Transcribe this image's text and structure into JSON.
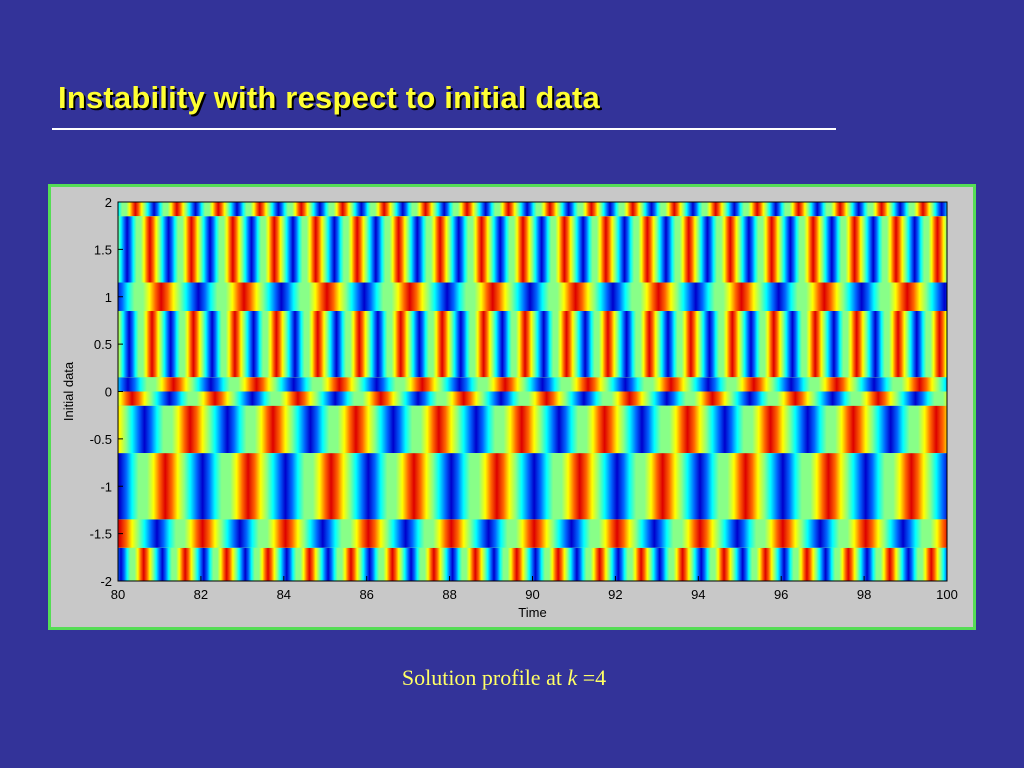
{
  "slide": {
    "title": "Instability with respect to initial data",
    "caption_prefix": "Solution profile at ",
    "caption_var": "k",
    "caption_suffix": " =4"
  },
  "chart_data": {
    "type": "heatmap",
    "title": "",
    "xlabel": "Time",
    "ylabel": "Initial data",
    "xlim": [
      80,
      100
    ],
    "ylim": [
      -2,
      2
    ],
    "x_ticks": [
      "80",
      "82",
      "84",
      "86",
      "88",
      "90",
      "92",
      "94",
      "96",
      "98",
      "100"
    ],
    "y_ticks": [
      "2",
      "1.5",
      "1",
      "0.5",
      "0",
      "-0.5",
      "-1",
      "-1.5",
      "-2"
    ],
    "colormap": [
      "#00008f",
      "#0000ff",
      "#00ffff",
      "#7fff7f",
      "#ffff00",
      "#ff0000",
      "#7f0000"
    ],
    "bands": [
      {
        "y": [
          1.85,
          2.0
        ],
        "period": 1.0,
        "phase": 0.2
      },
      {
        "y": [
          1.15,
          1.85
        ],
        "period": 1.0,
        "phase": 0.55
      },
      {
        "y": [
          0.85,
          1.15
        ],
        "period": 2.0,
        "phase": 0.6
      },
      {
        "y": [
          0.15,
          0.85
        ],
        "period": 1.0,
        "phase": 0.6
      },
      {
        "y": [
          0.0,
          0.15
        ],
        "period": 2.0,
        "phase": 0.9
      },
      {
        "y": [
          -0.15,
          0.0
        ],
        "period": 2.0,
        "phase": 1.9
      },
      {
        "y": [
          -0.65,
          -0.15
        ],
        "period": 2.0,
        "phase": 1.3
      },
      {
        "y": [
          -1.35,
          -0.65
        ],
        "period": 2.0,
        "phase": 0.7
      },
      {
        "y": [
          -1.65,
          -1.35
        ],
        "period": 2.0,
        "phase": 1.6
      },
      {
        "y": [
          -2.0,
          -1.65
        ],
        "period": 1.0,
        "phase": 0.4
      }
    ]
  }
}
